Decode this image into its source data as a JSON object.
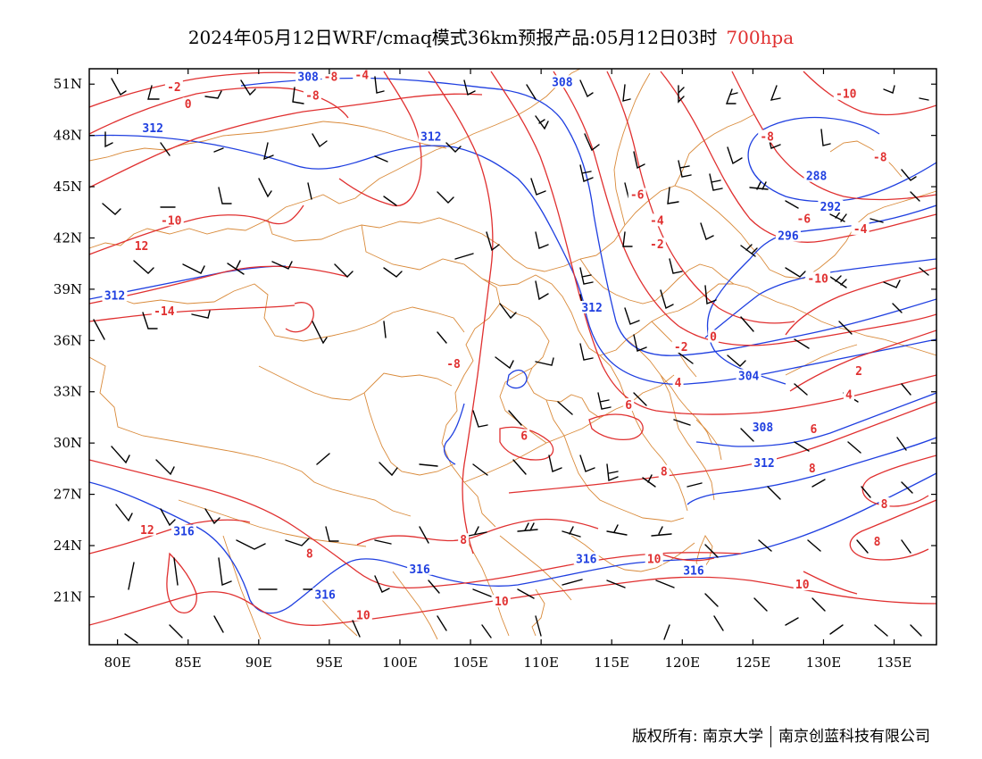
{
  "title": {
    "main": "2024年05月12日WRF/cmaq模式36km预报产品:05月12日03时",
    "level": "700hpa"
  },
  "colors": {
    "temperature": "#e03030",
    "height": "#1f3fe0",
    "boundary": "#d98a3a",
    "wind": "#000000",
    "frame": "#000000"
  },
  "axes": {
    "x_ticks": [
      "80E",
      "85E",
      "90E",
      "95E",
      "100E",
      "105E",
      "110E",
      "115E",
      "120E",
      "125E",
      "130E",
      "135E"
    ],
    "x_values": [
      80,
      85,
      90,
      95,
      100,
      105,
      110,
      115,
      120,
      125,
      130,
      135
    ],
    "y_ticks": [
      "51N",
      "48N",
      "45N",
      "42N",
      "39N",
      "36N",
      "33N",
      "30N",
      "27N",
      "24N",
      "21N"
    ],
    "y_values": [
      51,
      48,
      45,
      42,
      39,
      36,
      33,
      30,
      27,
      24,
      21
    ],
    "lon_range": [
      78,
      138
    ],
    "lat_range": [
      18.2,
      51.9
    ]
  },
  "height_labels": [
    {
      "text": "308",
      "lon": 93.5,
      "lat": 51.4
    },
    {
      "text": "308",
      "lon": 111.5,
      "lat": 51.1
    },
    {
      "text": "312",
      "lon": 82.5,
      "lat": 48.4
    },
    {
      "text": "312",
      "lon": 102.2,
      "lat": 47.9
    },
    {
      "text": "312",
      "lon": 79.8,
      "lat": 38.6
    },
    {
      "text": "312",
      "lon": 113.6,
      "lat": 37.9
    },
    {
      "text": "304",
      "lon": 124.7,
      "lat": 33.9
    },
    {
      "text": "308",
      "lon": 125.7,
      "lat": 30.9
    },
    {
      "text": "312",
      "lon": 125.8,
      "lat": 28.8
    },
    {
      "text": "316",
      "lon": 84.7,
      "lat": 24.8
    },
    {
      "text": "316",
      "lon": 101.4,
      "lat": 22.6
    },
    {
      "text": "316",
      "lon": 113.2,
      "lat": 23.2
    },
    {
      "text": "316",
      "lon": 120.8,
      "lat": 22.5
    },
    {
      "text": "316",
      "lon": 94.7,
      "lat": 21.1
    },
    {
      "text": "288",
      "lon": 129.5,
      "lat": 45.6
    },
    {
      "text": "292",
      "lon": 130.5,
      "lat": 43.8
    },
    {
      "text": "296",
      "lon": 127.5,
      "lat": 42.1
    }
  ],
  "temp_labels": [
    {
      "text": "-8",
      "lon": 95.1,
      "lat": 51.4
    },
    {
      "text": "-4",
      "lon": 97.3,
      "lat": 51.5
    },
    {
      "text": "-8",
      "lon": 93.8,
      "lat": 50.3
    },
    {
      "text": "-2",
      "lon": 84.0,
      "lat": 50.8
    },
    {
      "text": "0",
      "lon": 85.0,
      "lat": 49.8
    },
    {
      "text": "-10",
      "lon": 83.8,
      "lat": 43.0
    },
    {
      "text": "12",
      "lon": 81.7,
      "lat": 41.5
    },
    {
      "text": "-14",
      "lon": 83.3,
      "lat": 37.7
    },
    {
      "text": "-8",
      "lon": 103.8,
      "lat": 34.6
    },
    {
      "text": "-8",
      "lon": 126.0,
      "lat": 47.9
    },
    {
      "text": "-6",
      "lon": 116.8,
      "lat": 44.5
    },
    {
      "text": "-4",
      "lon": 118.2,
      "lat": 43.0
    },
    {
      "text": "-2",
      "lon": 118.2,
      "lat": 41.6
    },
    {
      "text": "-6",
      "lon": 128.6,
      "lat": 43.1
    },
    {
      "text": "-4",
      "lon": 132.6,
      "lat": 42.5
    },
    {
      "text": "-10",
      "lon": 131.6,
      "lat": 50.4
    },
    {
      "text": "-8",
      "lon": 134.0,
      "lat": 46.7
    },
    {
      "text": "-10",
      "lon": 129.6,
      "lat": 39.6
    },
    {
      "text": "-2",
      "lon": 119.9,
      "lat": 35.6
    },
    {
      "text": "0",
      "lon": 122.2,
      "lat": 36.2
    },
    {
      "text": "4",
      "lon": 119.7,
      "lat": 33.5
    },
    {
      "text": "2",
      "lon": 132.5,
      "lat": 34.2
    },
    {
      "text": "4",
      "lon": 131.8,
      "lat": 32.8
    },
    {
      "text": "6",
      "lon": 116.2,
      "lat": 32.2
    },
    {
      "text": "6",
      "lon": 108.8,
      "lat": 30.4
    },
    {
      "text": "6",
      "lon": 129.3,
      "lat": 30.8
    },
    {
      "text": "8",
      "lon": 118.7,
      "lat": 28.3
    },
    {
      "text": "8",
      "lon": 129.2,
      "lat": 28.5
    },
    {
      "text": "8",
      "lon": 134.3,
      "lat": 26.4
    },
    {
      "text": "8",
      "lon": 133.8,
      "lat": 24.2
    },
    {
      "text": "8",
      "lon": 104.5,
      "lat": 24.3
    },
    {
      "text": "8",
      "lon": 93.6,
      "lat": 23.5
    },
    {
      "text": "12",
      "lon": 82.1,
      "lat": 24.9
    },
    {
      "text": "10",
      "lon": 118.0,
      "lat": 23.2
    },
    {
      "text": "10",
      "lon": 128.5,
      "lat": 21.7
    },
    {
      "text": "10",
      "lon": 97.4,
      "lat": 19.9
    },
    {
      "text": "10",
      "lon": 107.2,
      "lat": 20.7
    }
  ],
  "footer": {
    "left": "版权所有: 南京大学",
    "right": "南京创蓝科技有限公司"
  }
}
